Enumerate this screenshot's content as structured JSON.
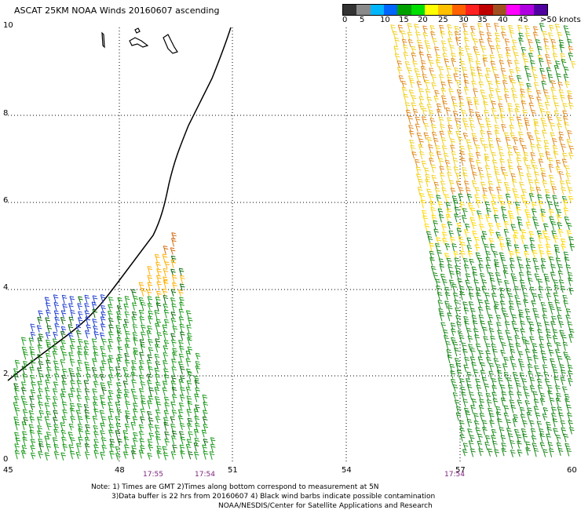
{
  "title": "ASCAT 25KM NOAA Winds 20160607 ascending",
  "colorbar": {
    "colors": [
      "#333333",
      "#8a8a8a",
      "#00b6ff",
      "#0066ff",
      "#00a000",
      "#00dd00",
      "#ffff00",
      "#ffc000",
      "#ff6000",
      "#ff2020",
      "#c00000",
      "#a05020",
      "#ff00ff",
      "#b000e0",
      "#5000a0"
    ],
    "labels": [
      "0",
      "5",
      "10",
      "15",
      "20",
      "25",
      "30",
      "35",
      "40",
      "45",
      ">50 knots"
    ]
  },
  "axes": {
    "x_ticks": [
      "45",
      "48",
      "51",
      "54",
      "57",
      "60"
    ],
    "y_ticks": [
      "0",
      "2",
      "4",
      "6",
      "8",
      "10"
    ]
  },
  "times": [
    "17:55",
    "17:54",
    "17:54"
  ],
  "notes": [
    "Note: 1) Times are GMT 2)Times along bottom correspond to measurement at 5N",
    "3)Data buffer is 22 hrs from 20160607 4) Black wind barbs indicate possible contamination",
    "NOAA/NESDIS/Center for Satellite Applications and Research"
  ]
}
